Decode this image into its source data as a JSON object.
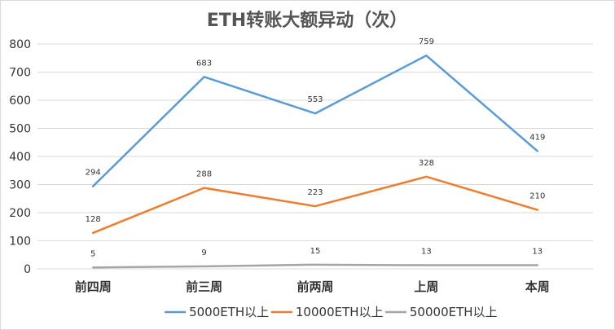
{
  "chart_data": {
    "type": "line",
    "title": "ETH转账大额异动（次）",
    "xlabel": "",
    "ylabel": "",
    "categories": [
      "前四周",
      "前三周",
      "前两周",
      "上周",
      "本周"
    ],
    "ylim": [
      0,
      800
    ],
    "yticks": [
      0,
      100,
      200,
      300,
      400,
      500,
      600,
      700,
      800
    ],
    "grid": true,
    "legend_position": "bottom",
    "series": [
      {
        "name": "5000ETH以上",
        "values": [
          294,
          683,
          553,
          759,
          419
        ],
        "color": "#5b9bd5"
      },
      {
        "name": "10000ETH以上",
        "values": [
          128,
          288,
          223,
          328,
          210
        ],
        "color": "#ed7d31"
      },
      {
        "name": "50000ETH以上",
        "values": [
          5,
          9,
          15,
          13,
          13
        ],
        "color": "#a5a5a5"
      }
    ]
  }
}
